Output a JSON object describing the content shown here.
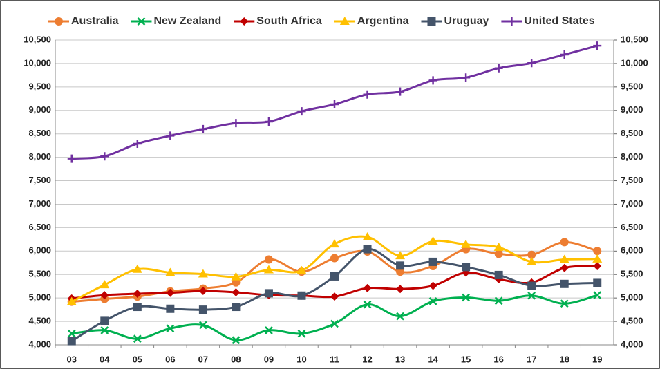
{
  "chart_data": {
    "type": "line",
    "categories": [
      "03",
      "04",
      "05",
      "06",
      "07",
      "08",
      "09",
      "10",
      "11",
      "12",
      "13",
      "14",
      "15",
      "16",
      "17",
      "18",
      "19"
    ],
    "series": [
      {
        "name": "Australia",
        "color": "#ed7d31",
        "marker": "circle",
        "values": [
          4920,
          4980,
          5030,
          5140,
          5200,
          5330,
          5820,
          5560,
          5850,
          5990,
          5560,
          5680,
          6040,
          5940,
          5920,
          6190,
          6000
        ]
      },
      {
        "name": "New Zealand",
        "color": "#00b050",
        "marker": "x",
        "values": [
          4240,
          4310,
          4130,
          4350,
          4420,
          4100,
          4310,
          4240,
          4450,
          4860,
          4610,
          4930,
          5010,
          4940,
          5050,
          4880,
          5060
        ]
      },
      {
        "name": "South Africa",
        "color": "#c00000",
        "marker": "diamond",
        "values": [
          4990,
          5060,
          5090,
          5110,
          5150,
          5120,
          5060,
          5050,
          5030,
          5210,
          5190,
          5260,
          5540,
          5400,
          5330,
          5640,
          5680
        ]
      },
      {
        "name": "Argentina",
        "color": "#ffc000",
        "marker": "triangle",
        "values": [
          4920,
          5280,
          5610,
          5540,
          5510,
          5450,
          5600,
          5580,
          6150,
          6300,
          5900,
          6210,
          6140,
          6080,
          5770,
          5820,
          5830
        ]
      },
      {
        "name": "Uruguay",
        "color": "#44546a",
        "marker": "square",
        "values": [
          4080,
          4510,
          4810,
          4770,
          4750,
          4810,
          5100,
          5050,
          5460,
          6040,
          5690,
          5770,
          5660,
          5490,
          5260,
          5300,
          5320
        ]
      },
      {
        "name": "United States",
        "color": "#7030a0",
        "marker": "plus",
        "values": [
          7970,
          8020,
          8290,
          8460,
          8600,
          8730,
          8760,
          8980,
          9130,
          9340,
          9400,
          9640,
          9700,
          9900,
          10010,
          10190,
          10380
        ]
      }
    ],
    "ylim": [
      4000,
      10500
    ],
    "yticks": [
      {
        "value": 4000,
        "label": "4,000"
      },
      {
        "value": 4500,
        "label": "4,500"
      },
      {
        "value": 5000,
        "label": "5,000"
      },
      {
        "value": 5500,
        "label": "5,500"
      },
      {
        "value": 6000,
        "label": "6,000"
      },
      {
        "value": 6500,
        "label": "6,500"
      },
      {
        "value": 7000,
        "label": "7,000"
      },
      {
        "value": 7500,
        "label": "7,500"
      },
      {
        "value": 8000,
        "label": "8,000"
      },
      {
        "value": 8500,
        "label": "8,500"
      },
      {
        "value": 9000,
        "label": "9,000"
      },
      {
        "value": 9500,
        "label": "9,500"
      },
      {
        "value": 10000,
        "label": "10,000"
      },
      {
        "value": 10500,
        "label": "10,500"
      }
    ],
    "y2lim": [
      4000,
      10500
    ],
    "y2ticks": [
      {
        "value": 4000,
        "label": "4,000"
      },
      {
        "value": 4500,
        "label": "4,500"
      },
      {
        "value": 5000,
        "label": "5,000"
      },
      {
        "value": 5500,
        "label": "5,500"
      },
      {
        "value": 6000,
        "label": "6,000"
      },
      {
        "value": 6500,
        "label": "6,500"
      },
      {
        "value": 7000,
        "label": "7,000"
      },
      {
        "value": 7500,
        "label": "7,500"
      },
      {
        "value": 8000,
        "label": "8,000"
      },
      {
        "value": 8500,
        "label": "8,500"
      },
      {
        "value": 9000,
        "label": "9,000"
      },
      {
        "value": 9500,
        "label": "9,500"
      },
      {
        "value": 10000,
        "label": "10,000"
      },
      {
        "value": 10500,
        "label": "10,500"
      }
    ],
    "grid": true,
    "legend": "top"
  }
}
